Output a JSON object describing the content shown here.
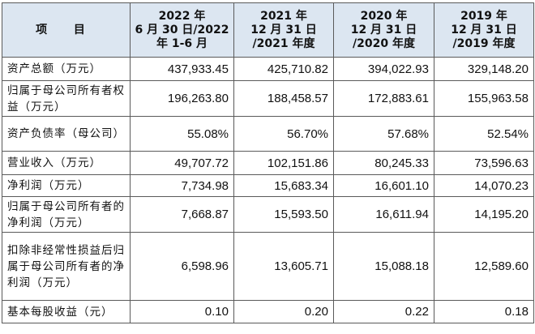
{
  "header": {
    "item_label": "项 目",
    "columns": [
      [
        "2022 年",
        "6 月 30 日/2022",
        "年 1-6 月"
      ],
      [
        "2021 年",
        "12 月 31 日",
        "/2021 年度"
      ],
      [
        "2020 年",
        "12 月 31 日",
        "/2020 年度"
      ],
      [
        "2019 年",
        "12 月 31 日",
        "/2019 年度"
      ]
    ]
  },
  "rows": [
    {
      "label": "资产总额（万元）",
      "values": [
        "437,933.45",
        "425,710.82",
        "394,022.93",
        "329,148.20"
      ]
    },
    {
      "label": "归属于母公司所有者权益（万元）",
      "values": [
        "196,263.80",
        "188,458.57",
        "172,883.61",
        "155,963.58"
      ]
    },
    {
      "label": "资产负债率（母公司）",
      "values": [
        "55.08%",
        "56.70%",
        "57.68%",
        "52.54%"
      ]
    },
    {
      "label": "营业收入（万元）",
      "values": [
        "49,707.72",
        "102,151.86",
        "80,245.33",
        "73,596.63"
      ]
    },
    {
      "label": "净利润（万元）",
      "values": [
        "7,734.98",
        "15,683.34",
        "16,601.10",
        "14,070.23"
      ]
    },
    {
      "label": "归属于母公司所有者的净利润（万元）",
      "values": [
        "7,668.87",
        "15,593.50",
        "16,611.94",
        "14,195.20"
      ]
    },
    {
      "label": "扣除非经常性损益后归属于母公司所有者的净利润（万元）",
      "values": [
        "6,598.96",
        "13,605.71",
        "15,088.18",
        "12,589.60"
      ]
    },
    {
      "label": "基本每股收益（元）",
      "values": [
        "0.10",
        "0.20",
        "0.22",
        "0.18"
      ]
    }
  ]
}
